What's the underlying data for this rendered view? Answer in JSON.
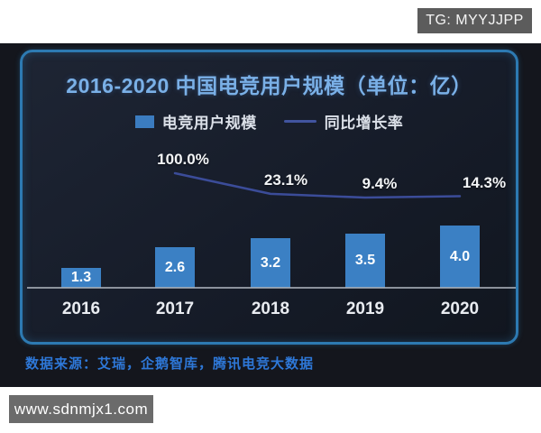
{
  "header": {
    "badge": "TG: MYYJJPP"
  },
  "chart": {
    "title": "2016-2020 中国电竞用户规模（单位：亿）",
    "legend": [
      {
        "label": "电竞用户规模",
        "type": "bar",
        "color": "#3b7cc0"
      },
      {
        "label": "同比增长率",
        "type": "line",
        "color": "#41549f"
      }
    ],
    "colors": {
      "panel_border": "#2d7ab2",
      "bar": "#3b80c4",
      "line": "#3d4f9f",
      "title": "#7ab0e7",
      "source": "#2e78d8"
    },
    "source": "数据来源：艾瑞，企鹅智库，腾讯电竞大数据"
  },
  "chart_data": {
    "type": "bar",
    "title": "2016-2020 中国电竞用户规模（单位：亿）",
    "categories": [
      "2016",
      "2017",
      "2018",
      "2019",
      "2020"
    ],
    "series": [
      {
        "name": "电竞用户规模",
        "type": "bar",
        "unit": "亿",
        "values": [
          1.3,
          2.6,
          3.2,
          3.5,
          4.0
        ],
        "value_labels": [
          "1.3",
          "2.6",
          "3.2",
          "3.5",
          "4.0"
        ]
      },
      {
        "name": "同比增长率",
        "type": "line",
        "unit": "%",
        "values": [
          null,
          100.0,
          23.1,
          9.4,
          14.3
        ],
        "value_labels": [
          null,
          "100.0%",
          "23.1%",
          "9.4%",
          "14.3%"
        ]
      }
    ],
    "xlabel": "",
    "ylabel": "",
    "grid": false,
    "legend_position": "top",
    "source": "数据来源：艾瑞，企鹅智库，腾讯电竞大数据"
  },
  "footer": {
    "watermark": "www.sdnmjx1.com"
  }
}
